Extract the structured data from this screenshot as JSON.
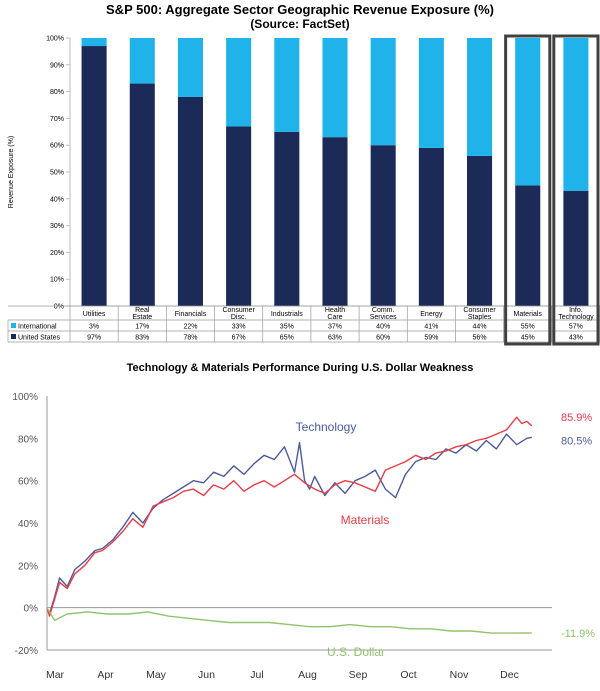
{
  "chart_data": [
    {
      "type": "bar",
      "title": "S&P 500: Aggregate Sector Geographic Revenue Exposure (%)",
      "subtitle": "(Source: FactSet)",
      "ylabel": "Revenue Exposure (%)",
      "ylim": [
        0,
        100
      ],
      "ytick_labels": [
        "0%",
        "10%",
        "20%",
        "30%",
        "40%",
        "50%",
        "60%",
        "70%",
        "80%",
        "90%",
        "100%"
      ],
      "stacked": true,
      "categories": [
        "Utilities",
        "Real Estate",
        "Financials",
        "Consumer Disc.",
        "Industrials",
        "Health Care",
        "Comm. Services",
        "Energy",
        "Consumer Staples",
        "Materials",
        "Info. Technology"
      ],
      "highlighted_categories": [
        "Materials",
        "Info. Technology"
      ],
      "series": [
        {
          "name": "United States",
          "color": "#1b2a57",
          "values": [
            97,
            83,
            78,
            67,
            65,
            63,
            60,
            59,
            56,
            45,
            43
          ],
          "labels": [
            "97%",
            "83%",
            "78%",
            "67%",
            "65%",
            "63%",
            "60%",
            "59%",
            "56%",
            "45%",
            "43%"
          ]
        },
        {
          "name": "International",
          "color": "#1fb3ea",
          "values": [
            3,
            17,
            22,
            33,
            35,
            37,
            40,
            41,
            44,
            55,
            57
          ],
          "labels": [
            "3%",
            "17%",
            "22%",
            "33%",
            "35%",
            "37%",
            "40%",
            "41%",
            "44%",
            "55%",
            "57%"
          ]
        }
      ],
      "legend": "table-below"
    },
    {
      "type": "line",
      "title": "Technology & Materials Performance During U.S. Dollar Weakness",
      "ylim": [
        -20,
        100
      ],
      "ytick_labels": [
        "-20%",
        "0%",
        "20%",
        "40%",
        "60%",
        "80%",
        "100%"
      ],
      "x_month_labels": [
        "Mar",
        "Apr",
        "May",
        "Jun",
        "Jul",
        "Aug",
        "Sep",
        "Oct",
        "Nov",
        "Dec"
      ],
      "grid": false,
      "series": [
        {
          "name": "Technology",
          "color": "#4a5aa0",
          "end_label": "80.5%",
          "x": [
            0,
            0.05,
            0.15,
            0.25,
            0.4,
            0.55,
            0.75,
            0.95,
            1.1,
            1.3,
            1.5,
            1.7,
            1.9,
            2.1,
            2.3,
            2.5,
            2.7,
            2.9,
            3.1,
            3.3,
            3.5,
            3.7,
            3.9,
            4.1,
            4.3,
            4.5,
            4.7,
            4.9,
            5.0,
            5.1,
            5.2,
            5.3,
            5.5,
            5.7,
            5.9,
            6.1,
            6.3,
            6.5,
            6.7,
            6.9,
            7.1,
            7.3,
            7.5,
            7.7,
            7.9,
            8.1,
            8.3,
            8.5,
            8.7,
            8.9,
            9.1,
            9.3,
            9.5,
            9.6
          ],
          "y": [
            0,
            -3,
            5,
            14,
            10,
            18,
            22,
            27,
            28,
            32,
            38,
            45,
            40,
            47,
            51,
            54,
            57,
            60,
            59,
            64,
            62,
            67,
            63,
            68,
            72,
            70,
            76,
            64,
            78,
            60,
            56,
            62,
            53,
            59,
            54,
            60,
            62,
            65,
            56,
            52,
            63,
            69,
            71,
            70,
            75,
            73,
            77,
            74,
            79,
            75,
            82,
            77,
            80,
            80.5
          ]
        },
        {
          "name": "Materials",
          "color": "#ef3a44",
          "end_label": "85.9%",
          "x": [
            0,
            0.05,
            0.15,
            0.25,
            0.4,
            0.55,
            0.75,
            0.95,
            1.1,
            1.3,
            1.5,
            1.7,
            1.9,
            2.1,
            2.3,
            2.5,
            2.7,
            2.9,
            3.1,
            3.3,
            3.5,
            3.7,
            3.9,
            4.1,
            4.3,
            4.5,
            4.7,
            4.9,
            5.1,
            5.3,
            5.5,
            5.7,
            5.9,
            6.1,
            6.3,
            6.5,
            6.7,
            6.9,
            7.1,
            7.3,
            7.5,
            7.7,
            7.9,
            8.1,
            8.3,
            8.5,
            8.7,
            8.9,
            9.1,
            9.3,
            9.4,
            9.5,
            9.6
          ],
          "y": [
            0,
            -4,
            4,
            12,
            9,
            16,
            20,
            26,
            27,
            31,
            36,
            42,
            38,
            48,
            50,
            52,
            55,
            56,
            53,
            58,
            56,
            60,
            55,
            58,
            60,
            57,
            60,
            63,
            59,
            56,
            54,
            58,
            60,
            59,
            57,
            55,
            65,
            67,
            69,
            72,
            70,
            73,
            74,
            76,
            77,
            79,
            80,
            82,
            84,
            90,
            87,
            88,
            85.9
          ]
        },
        {
          "name": "U.S. Dollar",
          "color": "#8fc46a",
          "end_label": "-11.9%",
          "x": [
            0,
            0.15,
            0.4,
            0.8,
            1.2,
            1.6,
            2.0,
            2.4,
            2.8,
            3.2,
            3.6,
            4.0,
            4.4,
            4.8,
            5.2,
            5.6,
            6.0,
            6.4,
            6.8,
            7.2,
            7.6,
            8.0,
            8.4,
            8.8,
            9.2,
            9.6
          ],
          "y": [
            0,
            -6,
            -3,
            -2,
            -3,
            -3,
            -2,
            -4,
            -5,
            -6,
            -7,
            -7,
            -7,
            -8,
            -9,
            -9,
            -8,
            -9,
            -9,
            -10,
            -10,
            -11,
            -11,
            -12,
            -12,
            -11.9
          ]
        }
      ]
    }
  ]
}
